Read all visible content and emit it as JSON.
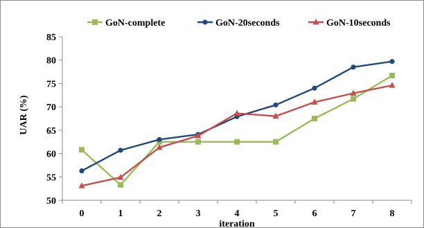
{
  "chart_data": {
    "type": "line",
    "title": "",
    "xlabel": "iteration",
    "ylabel": "UAR (%)",
    "x": [
      0,
      1,
      2,
      3,
      4,
      5,
      6,
      7,
      8
    ],
    "ylim": [
      50,
      85
    ],
    "yticks": [
      50,
      55,
      60,
      65,
      70,
      75,
      80,
      85
    ],
    "grid": false,
    "legend_position": "top",
    "series": [
      {
        "name": "GoN-complete",
        "color": "#9bbb59",
        "marker": "square",
        "values": [
          60.8,
          53.3,
          62.5,
          62.5,
          62.5,
          62.5,
          67.5,
          71.7,
          76.7
        ]
      },
      {
        "name": "GoN-20seconds",
        "color": "#1f497d",
        "marker": "circle",
        "values": [
          56.3,
          60.7,
          63.0,
          64.1,
          67.9,
          70.4,
          74.0,
          78.5,
          79.7
        ]
      },
      {
        "name": "GoN-10seconds",
        "color": "#c0504d",
        "marker": "triangle",
        "values": [
          53.1,
          54.9,
          61.3,
          63.8,
          68.6,
          68.0,
          71.0,
          72.9,
          74.6
        ]
      }
    ]
  }
}
